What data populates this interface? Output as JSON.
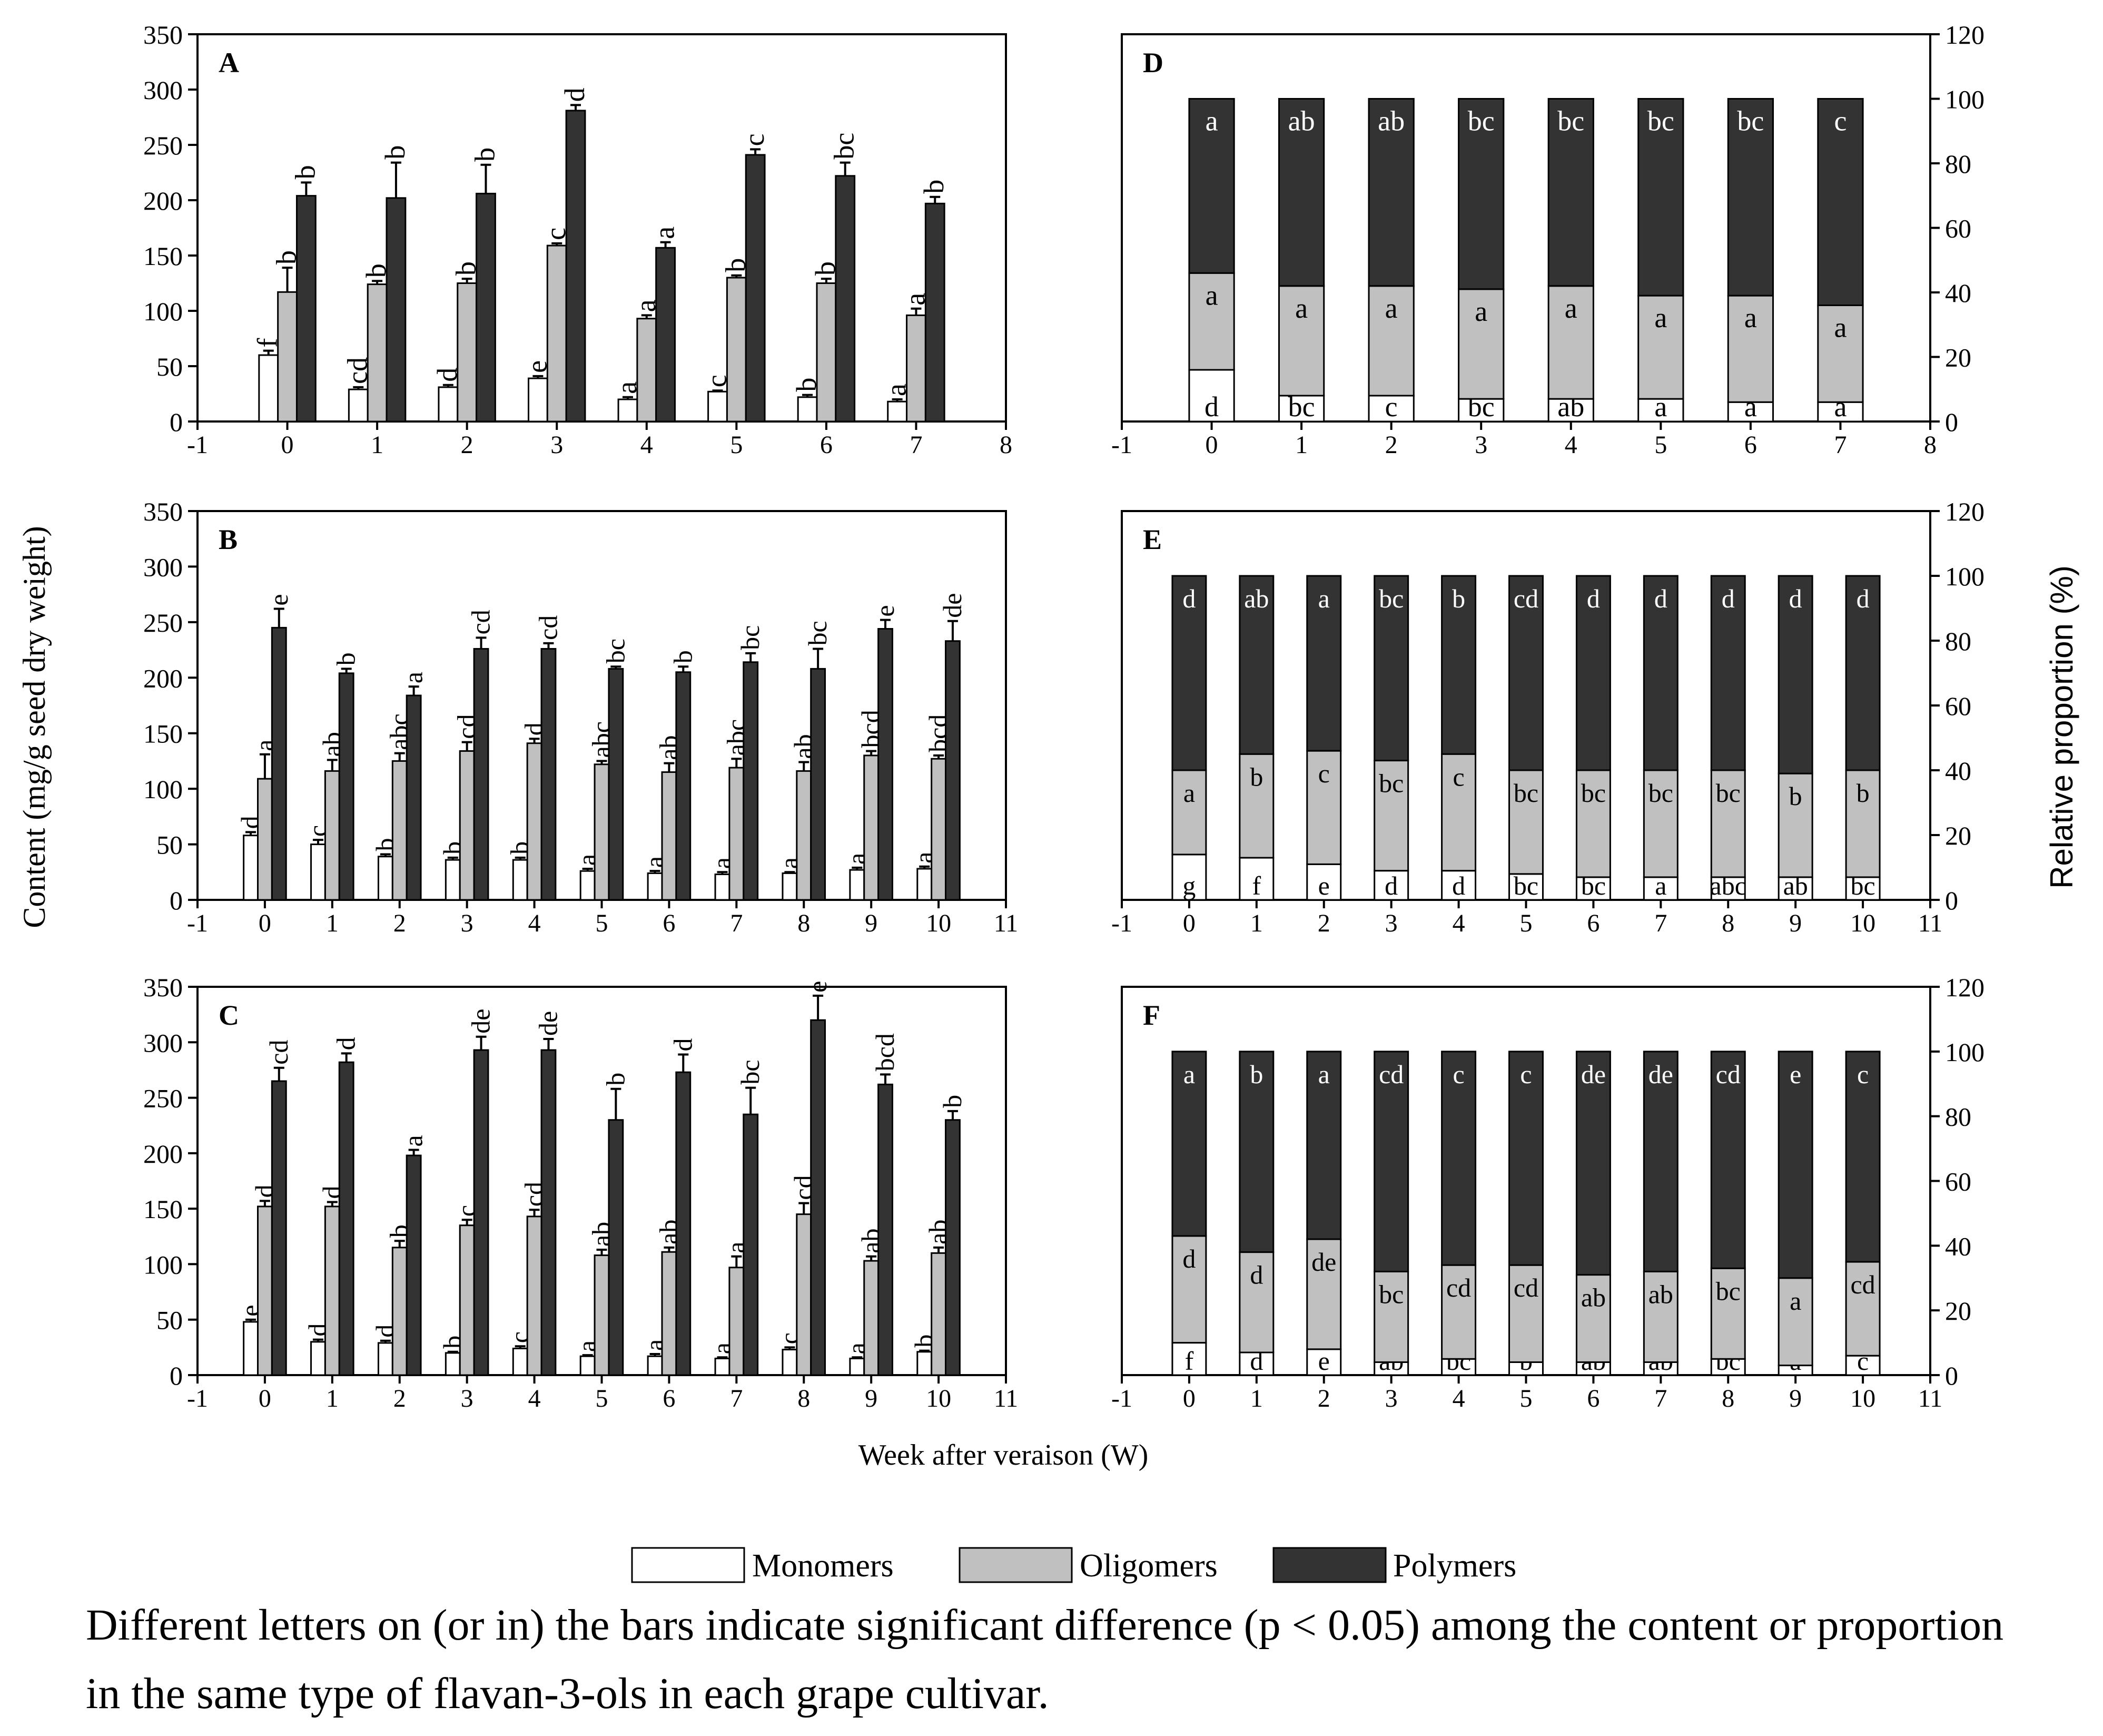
{
  "y_label_left": "Content (mg/g seed dry weight)",
  "y_label_right": "Relative proportion (%)",
  "x_label": "Week after veraison (W)",
  "legend": [
    "Monomers",
    "Oligomers",
    "Polymers"
  ],
  "note": "Different letters on (or in) the bars indicate significant difference (p < 0.05) among the content or proportion in the same type of flavan-3-ols in each grape cultivar.",
  "colors": {
    "monomers": "#ffffff",
    "oligomers": "#c0c0c0",
    "polymers": "#333333"
  },
  "chart_data": [
    {
      "type": "bar",
      "panel": "A",
      "x": [
        0,
        1,
        2,
        3,
        4,
        5,
        6,
        7
      ],
      "xticks": [
        "-1",
        "0",
        "1",
        "2",
        "3",
        "4",
        "5",
        "6",
        "7",
        "8"
      ],
      "xlim": [
        -1,
        8
      ],
      "ylim": [
        0,
        350
      ],
      "yticks": [
        0,
        50,
        100,
        150,
        200,
        250,
        300,
        350
      ],
      "series": [
        {
          "name": "Monomers",
          "values": [
            60,
            29,
            31,
            39,
            20,
            27,
            22,
            18
          ],
          "errors": [
            4,
            2,
            2,
            2,
            2,
            1,
            2,
            2
          ],
          "letters": [
            "f",
            "cd",
            "d",
            "e",
            "a",
            "c",
            "b",
            "a"
          ]
        },
        {
          "name": "Oligomers",
          "values": [
            117,
            124,
            125,
            159,
            93,
            130,
            125,
            96
          ],
          "errors": [
            22,
            3,
            4,
            2,
            3,
            2,
            4,
            6
          ],
          "letters": [
            "b",
            "b",
            "b",
            "c",
            "a",
            "b",
            "b",
            "a"
          ]
        },
        {
          "name": "Polymers",
          "values": [
            204,
            202,
            206,
            281,
            157,
            241,
            222,
            197
          ],
          "errors": [
            12,
            32,
            26,
            5,
            5,
            5,
            12,
            6
          ],
          "letters": [
            "b",
            "b",
            "b",
            "d",
            "a",
            "c",
            "bc",
            "b"
          ]
        }
      ]
    },
    {
      "type": "bar",
      "panel": "B",
      "x": [
        0,
        1,
        2,
        3,
        4,
        5,
        6,
        7,
        8,
        9,
        10
      ],
      "xticks": [
        "-1",
        "0",
        "1",
        "2",
        "3",
        "4",
        "5",
        "6",
        "7",
        "8",
        "9",
        "10",
        "11"
      ],
      "xlim": [
        -1,
        11
      ],
      "ylim": [
        0,
        350
      ],
      "yticks": [
        0,
        50,
        100,
        150,
        200,
        250,
        300,
        350
      ],
      "series": [
        {
          "name": "Monomers",
          "values": [
            58,
            50,
            39,
            36,
            36,
            26,
            24,
            23,
            24,
            27,
            28
          ],
          "errors": [
            3,
            4,
            2,
            2,
            2,
            2,
            2,
            2,
            1,
            2,
            2
          ],
          "letters": [
            "d",
            "c",
            "b",
            "b",
            "b",
            "a",
            "a",
            "a",
            "a",
            "a",
            "a"
          ]
        },
        {
          "name": "Oligomers",
          "values": [
            109,
            116,
            125,
            134,
            141,
            122,
            115,
            119,
            116,
            130,
            127
          ],
          "errors": [
            22,
            10,
            7,
            8,
            4,
            3,
            8,
            8,
            8,
            4,
            3
          ],
          "letters": [
            "a",
            "ab",
            "abc",
            "cd",
            "d",
            "abc",
            "ab",
            "abc",
            "ab",
            "bcd",
            "bcd"
          ]
        },
        {
          "name": "Polymers",
          "values": [
            245,
            204,
            184,
            226,
            226,
            208,
            205,
            214,
            208,
            244,
            233
          ],
          "errors": [
            17,
            4,
            8,
            10,
            5,
            2,
            5,
            8,
            18,
            8,
            18
          ],
          "letters": [
            "e",
            "b",
            "a",
            "cd",
            "cd",
            "bc",
            "b",
            "bc",
            "bc",
            "e",
            "de"
          ]
        }
      ]
    },
    {
      "type": "bar",
      "panel": "C",
      "x": [
        0,
        1,
        2,
        3,
        4,
        5,
        6,
        7,
        8,
        9,
        10
      ],
      "xticks": [
        "-1",
        "0",
        "1",
        "2",
        "3",
        "4",
        "5",
        "6",
        "7",
        "8",
        "9",
        "10",
        "11"
      ],
      "xlim": [
        -1,
        11
      ],
      "ylim": [
        0,
        350
      ],
      "yticks": [
        0,
        50,
        100,
        150,
        200,
        250,
        300,
        350
      ],
      "series": [
        {
          "name": "Monomers",
          "values": [
            48,
            30,
            29,
            20,
            24,
            17,
            17,
            15,
            23,
            15,
            21
          ],
          "errors": [
            2,
            2,
            2,
            1,
            2,
            1,
            2,
            1,
            2,
            1,
            1
          ],
          "letters": [
            "e",
            "d",
            "d",
            "b",
            "c",
            "a",
            "a",
            "a",
            "c",
            "a",
            "b"
          ]
        },
        {
          "name": "Oligomers",
          "values": [
            152,
            152,
            115,
            135,
            143,
            108,
            111,
            97,
            145,
            103,
            110
          ],
          "errors": [
            5,
            4,
            6,
            5,
            6,
            5,
            4,
            10,
            10,
            4,
            5
          ],
          "letters": [
            "d",
            "d",
            "b",
            "c",
            "cd",
            "ab",
            "ab",
            "a",
            "cd",
            "ab",
            "ab"
          ]
        },
        {
          "name": "Polymers",
          "values": [
            265,
            282,
            198,
            293,
            293,
            230,
            273,
            235,
            320,
            262,
            230
          ],
          "errors": [
            12,
            8,
            5,
            12,
            10,
            28,
            16,
            24,
            22,
            9,
            8
          ],
          "letters": [
            "cd",
            "d",
            "a",
            "de",
            "de",
            "b",
            "d",
            "bc",
            "e",
            "bcd",
            "b"
          ]
        }
      ]
    },
    {
      "type": "bar",
      "stacked": true,
      "panel": "D",
      "x": [
        0,
        1,
        2,
        3,
        4,
        5,
        6,
        7
      ],
      "xticks": [
        "-1",
        "0",
        "1",
        "2",
        "3",
        "4",
        "5",
        "6",
        "7",
        "8"
      ],
      "xlim": [
        -1,
        8
      ],
      "ylim": [
        0,
        120
      ],
      "yticks": [
        0,
        20,
        40,
        60,
        80,
        100,
        120
      ],
      "series": [
        {
          "name": "Monomers",
          "values": [
            16,
            8,
            8,
            7,
            7,
            7,
            6,
            6
          ],
          "letters": [
            "d",
            "bc",
            "c",
            "bc",
            "ab",
            "a",
            "a",
            "a"
          ]
        },
        {
          "name": "Oligomers",
          "values": [
            30,
            34,
            34,
            34,
            35,
            32,
            33,
            30
          ],
          "letters": [
            "a",
            "a",
            "a",
            "a",
            "a",
            "a",
            "a",
            "a"
          ]
        },
        {
          "name": "Polymers",
          "values": [
            54,
            58,
            58,
            59,
            58,
            61,
            61,
            64
          ],
          "letters": [
            "a",
            "ab",
            "ab",
            "bc",
            "bc",
            "bc",
            "bc",
            "c"
          ]
        }
      ]
    },
    {
      "type": "bar",
      "stacked": true,
      "panel": "E",
      "x": [
        0,
        1,
        2,
        3,
        4,
        5,
        6,
        7,
        8,
        9,
        10
      ],
      "xticks": [
        "-1",
        "0",
        "1",
        "2",
        "3",
        "4",
        "5",
        "6",
        "7",
        "8",
        "9",
        "10",
        "11"
      ],
      "xlim": [
        -1,
        11
      ],
      "ylim": [
        0,
        120
      ],
      "yticks": [
        0,
        20,
        40,
        60,
        80,
        100,
        120
      ],
      "series": [
        {
          "name": "Monomers",
          "values": [
            14,
            13,
            11,
            9,
            9,
            8,
            7,
            7,
            7,
            7,
            7
          ],
          "letters": [
            "g",
            "f",
            "e",
            "d",
            "d",
            "bc",
            "bc",
            "a",
            "abc",
            "ab",
            "bc"
          ]
        },
        {
          "name": "Oligomers",
          "values": [
            26,
            32,
            35,
            34,
            36,
            32,
            33,
            33,
            33,
            32,
            33
          ],
          "letters": [
            "a",
            "b",
            "c",
            "bc",
            "c",
            "bc",
            "bc",
            "bc",
            "bc",
            "b",
            "b"
          ]
        },
        {
          "name": "Polymers",
          "values": [
            60,
            55,
            54,
            57,
            55,
            60,
            60,
            60,
            60,
            61,
            60
          ],
          "letters": [
            "d",
            "ab",
            "a",
            "bc",
            "b",
            "cd",
            "d",
            "d",
            "d",
            "d",
            "d"
          ]
        }
      ]
    },
    {
      "type": "bar",
      "stacked": true,
      "panel": "F",
      "x": [
        0,
        1,
        2,
        3,
        4,
        5,
        6,
        7,
        8,
        9,
        10
      ],
      "xticks": [
        "-1",
        "0",
        "1",
        "2",
        "3",
        "4",
        "5",
        "6",
        "7",
        "8",
        "9",
        "10",
        "11"
      ],
      "xlim": [
        -1,
        11
      ],
      "ylim": [
        0,
        120
      ],
      "yticks": [
        0,
        20,
        40,
        60,
        80,
        100,
        120
      ],
      "series": [
        {
          "name": "Monomers",
          "values": [
            10,
            7,
            8,
            4,
            5,
            4,
            4,
            4,
            5,
            3,
            6
          ],
          "letters": [
            "f",
            "d",
            "e",
            "ab",
            "bc",
            "b",
            "ab",
            "ab",
            "bc",
            "a",
            "c"
          ]
        },
        {
          "name": "Oligomers",
          "values": [
            33,
            31,
            34,
            28,
            29,
            30,
            27,
            28,
            28,
            27,
            29
          ],
          "letters": [
            "d",
            "d",
            "de",
            "bc",
            "cd",
            "cd",
            "ab",
            "ab",
            "bc",
            "a",
            "cd"
          ]
        },
        {
          "name": "Polymers",
          "values": [
            57,
            62,
            58,
            68,
            66,
            66,
            69,
            68,
            67,
            70,
            65
          ],
          "letters": [
            "a",
            "b",
            "a",
            "cd",
            "c",
            "c",
            "de",
            "de",
            "cd",
            "e",
            "c"
          ]
        }
      ]
    }
  ]
}
